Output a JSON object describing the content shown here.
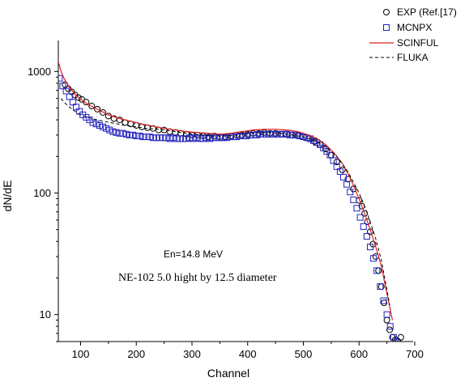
{
  "chart_data": {
    "type": "scatter",
    "xlabel": "Channel",
    "ylabel": "dN/dE",
    "xlim": [
      60,
      700
    ],
    "ylim": [
      6,
      1800
    ],
    "yscale": "log",
    "xticks": [
      100,
      200,
      300,
      400,
      500,
      600,
      700
    ],
    "yticks": [
      10,
      100,
      1000
    ],
    "tick_labels_x": [
      "100",
      "200",
      "300",
      "400",
      "500",
      "600",
      "700"
    ],
    "tick_labels_y": [
      "10",
      "100",
      "1000"
    ],
    "grid": false,
    "legend_position": "top-right",
    "legend": [
      {
        "name": "EXP (Ref.[17)",
        "marker": "circle",
        "color": "#000000"
      },
      {
        "name": "MCNPX",
        "marker": "square",
        "color": "#2020c0"
      },
      {
        "name": "SCINFUL",
        "line": "solid",
        "color": "#e02020"
      },
      {
        "name": "FLUKA",
        "line": "dashed",
        "color": "#000000"
      }
    ],
    "annotations": [
      "En=14.8 MeV",
      "NE-102 5.0 hight by 12.5 diameter"
    ],
    "series": [
      {
        "name": "EXP (Ref.[17)",
        "kind": "markers",
        "marker": "circle",
        "color": "#000000",
        "x": [
          72,
          78,
          84,
          90,
          96,
          102,
          110,
          120,
          130,
          140,
          150,
          160,
          170,
          180,
          190,
          200,
          210,
          220,
          230,
          240,
          250,
          260,
          270,
          280,
          290,
          300,
          310,
          320,
          330,
          340,
          350,
          360,
          370,
          380,
          390,
          400,
          410,
          420,
          430,
          440,
          450,
          460,
          470,
          480,
          490,
          500,
          510,
          520,
          530,
          540,
          550,
          560,
          570,
          580,
          590,
          600,
          605,
          610,
          615,
          620,
          625,
          630,
          635,
          640,
          645,
          650,
          655,
          660,
          665,
          670,
          675
        ],
        "y": [
          780,
          720,
          680,
          640,
          610,
          590,
          560,
          520,
          490,
          460,
          430,
          410,
          400,
          380,
          370,
          360,
          350,
          345,
          340,
          330,
          330,
          320,
          315,
          310,
          305,
          300,
          300,
          295,
          290,
          295,
          290,
          290,
          295,
          300,
          300,
          305,
          310,
          310,
          315,
          310,
          310,
          305,
          305,
          300,
          295,
          290,
          280,
          265,
          250,
          230,
          205,
          180,
          155,
          130,
          108,
          87,
          78,
          68,
          58,
          48,
          38,
          30,
          23,
          17,
          12.5,
          9,
          7.5,
          6.5,
          6.2,
          6.0,
          6.5
        ]
      },
      {
        "name": "MCNPX",
        "kind": "markers",
        "marker": "square",
        "color": "#2020c0",
        "x": [
          62,
          68,
          74,
          80,
          86,
          92,
          98,
          104,
          110,
          116,
          122,
          128,
          134,
          140,
          146,
          152,
          158,
          164,
          170,
          176,
          182,
          188,
          194,
          200,
          206,
          212,
          218,
          224,
          230,
          236,
          242,
          248,
          254,
          260,
          266,
          272,
          278,
          284,
          290,
          296,
          302,
          308,
          314,
          320,
          326,
          332,
          338,
          344,
          350,
          356,
          362,
          368,
          374,
          380,
          386,
          392,
          398,
          404,
          410,
          416,
          422,
          428,
          434,
          440,
          446,
          452,
          458,
          464,
          470,
          476,
          482,
          488,
          494,
          500,
          506,
          512,
          518,
          524,
          530,
          536,
          542,
          548,
          554,
          560,
          566,
          572,
          578,
          584,
          590,
          596,
          602,
          608,
          614,
          620,
          626,
          632,
          638,
          644,
          650,
          656,
          662,
          668
        ],
        "y": [
          880,
          760,
          690,
          620,
          560,
          510,
          470,
          440,
          420,
          400,
          380,
          370,
          360,
          350,
          340,
          330,
          320,
          315,
          310,
          310,
          305,
          300,
          300,
          295,
          295,
          290,
          290,
          290,
          285,
          285,
          285,
          285,
          285,
          280,
          285,
          280,
          280,
          280,
          280,
          285,
          280,
          285,
          280,
          280,
          285,
          280,
          285,
          285,
          285,
          285,
          285,
          290,
          290,
          290,
          295,
          295,
          295,
          300,
          300,
          300,
          305,
          305,
          305,
          305,
          305,
          305,
          305,
          305,
          305,
          300,
          300,
          300,
          295,
          290,
          285,
          280,
          270,
          260,
          250,
          235,
          220,
          205,
          185,
          165,
          150,
          135,
          118,
          102,
          88,
          75,
          63,
          53,
          44,
          36,
          29,
          23,
          17,
          13,
          10,
          8,
          6.5,
          6.0
        ]
      },
      {
        "name": "SCINFUL",
        "kind": "line",
        "dash": "solid",
        "color": "#e02020",
        "x": [
          60,
          65,
          70,
          80,
          90,
          100,
          115,
          130,
          150,
          170,
          190,
          210,
          230,
          250,
          270,
          290,
          310,
          330,
          350,
          370,
          390,
          410,
          430,
          450,
          470,
          490,
          510,
          525,
          540,
          555,
          570,
          580,
          590,
          600,
          610,
          620,
          630,
          640,
          650,
          660
        ],
        "y": [
          1200,
          1000,
          880,
          740,
          650,
          590,
          530,
          490,
          440,
          410,
          390,
          370,
          355,
          340,
          330,
          320,
          315,
          310,
          305,
          310,
          320,
          330,
          335,
          335,
          330,
          320,
          300,
          280,
          250,
          215,
          175,
          145,
          115,
          90,
          68,
          50,
          36,
          25,
          15,
          9
        ]
      },
      {
        "name": "FLUKA",
        "kind": "line",
        "dash": "dashed",
        "color": "#000000",
        "x": [
          65,
          70,
          80,
          90,
          100,
          120,
          140,
          160,
          180,
          200,
          220,
          240,
          260,
          280,
          300,
          320,
          340,
          360,
          380,
          400,
          420,
          440,
          460,
          480,
          500,
          520,
          540,
          560,
          580,
          600,
          610,
          620,
          630,
          640,
          650,
          655
        ],
        "y": [
          600,
          560,
          510,
          470,
          440,
          410,
          390,
          375,
          360,
          350,
          340,
          335,
          325,
          315,
          305,
          300,
          295,
          295,
          300,
          310,
          315,
          315,
          310,
          300,
          290,
          270,
          240,
          200,
          150,
          100,
          78,
          58,
          42,
          28,
          16,
          12
        ]
      }
    ]
  }
}
